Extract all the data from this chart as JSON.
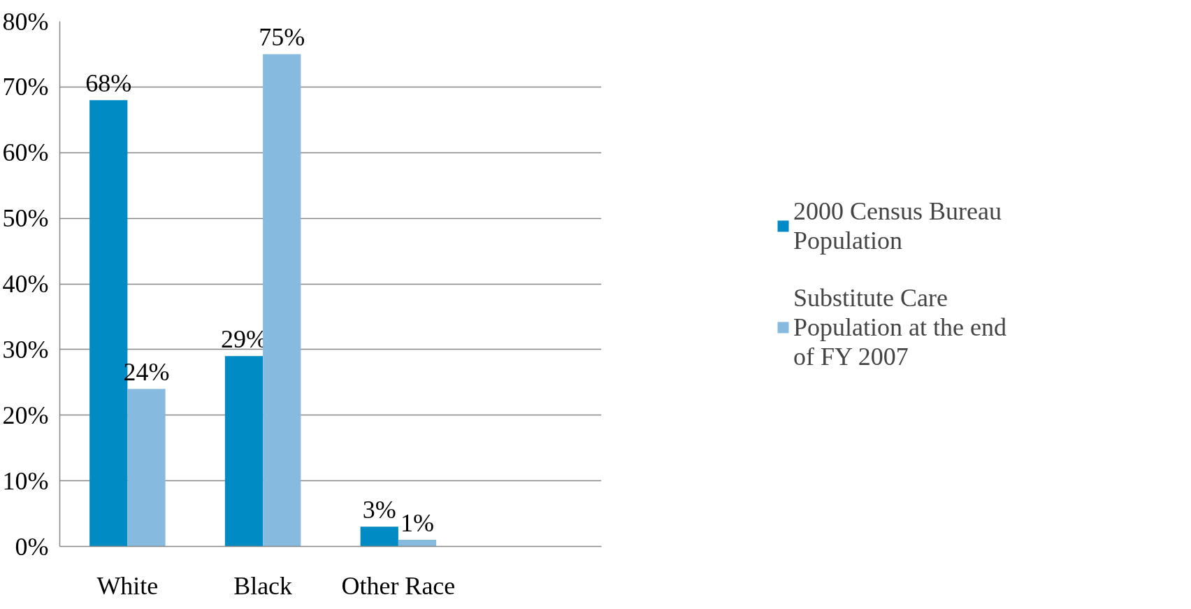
{
  "chart_data": {
    "type": "bar",
    "categories": [
      "White",
      "Black",
      "Other Race",
      null
    ],
    "series": [
      {
        "name": "2000 Census Bureau Population",
        "color": "#008bc4",
        "values": [
          68,
          29,
          3,
          null
        ],
        "value_labels": [
          "68%",
          "29%",
          "3%",
          null
        ]
      },
      {
        "name": "Substitute Care Population at the end of FY 2007",
        "color": "#87badf",
        "values": [
          24,
          75,
          1,
          null
        ],
        "value_labels": [
          "24%",
          "75%",
          "1%",
          null
        ]
      }
    ],
    "ylim": [
      0,
      80
    ],
    "yticks": [
      {
        "value": 0,
        "label": "0%"
      },
      {
        "value": 10,
        "label": "10%"
      },
      {
        "value": 20,
        "label": "20%"
      },
      {
        "value": 30,
        "label": "30%"
      },
      {
        "value": 40,
        "label": "40%"
      },
      {
        "value": 50,
        "label": "50%"
      },
      {
        "value": 60,
        "label": "60%"
      },
      {
        "value": 70,
        "label": "70%"
      },
      {
        "value": 80,
        "label": "80%"
      }
    ],
    "grid": "y",
    "legend": "right"
  }
}
